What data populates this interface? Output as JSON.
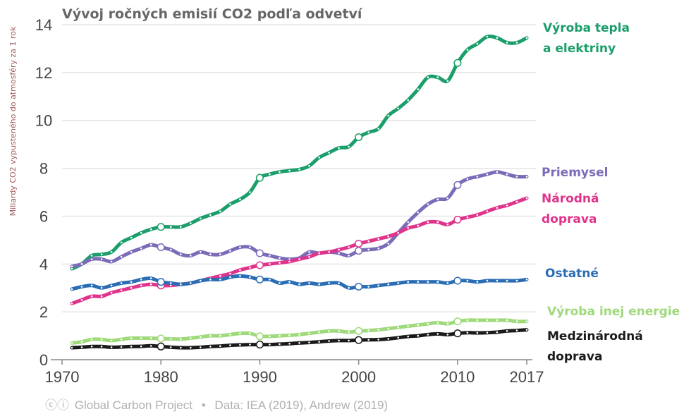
{
  "chart_data": {
    "type": "line",
    "title": "Vývoj ročných emisií CO2 podľa odvetví",
    "ylabel": "Miliardy CO2 vypusteného do atmosféry za 1 rok",
    "xlabel": "",
    "xlim": [
      1970,
      2017
    ],
    "ylim": [
      0,
      14
    ],
    "x_ticks": [
      1970,
      1980,
      1990,
      2000,
      2010,
      2017
    ],
    "y_ticks": [
      0,
      2,
      4,
      6,
      8,
      10,
      12,
      14
    ],
    "x": [
      1971,
      1972,
      1973,
      1974,
      1975,
      1976,
      1977,
      1978,
      1979,
      1980,
      1981,
      1982,
      1983,
      1984,
      1985,
      1986,
      1987,
      1988,
      1989,
      1990,
      1991,
      1992,
      1993,
      1994,
      1995,
      1996,
      1997,
      1998,
      1999,
      2000,
      2001,
      2002,
      2003,
      2004,
      2005,
      2006,
      2007,
      2008,
      2009,
      2010,
      2011,
      2012,
      2013,
      2014,
      2015,
      2016,
      2017
    ],
    "series": [
      {
        "name": "Výroba tepla a elektriny",
        "label_lines": [
          "Výroba tepla",
          "a elektriny"
        ],
        "color": "#1a9e6a",
        "values": [
          3.8,
          4.0,
          4.35,
          4.4,
          4.5,
          4.9,
          5.1,
          5.3,
          5.45,
          5.55,
          5.55,
          5.55,
          5.7,
          5.9,
          6.05,
          6.2,
          6.5,
          6.7,
          7.0,
          7.6,
          7.75,
          7.85,
          7.9,
          7.95,
          8.1,
          8.45,
          8.65,
          8.85,
          8.9,
          9.3,
          9.5,
          9.65,
          10.2,
          10.5,
          10.85,
          11.3,
          11.8,
          11.8,
          11.65,
          12.4,
          12.95,
          13.2,
          13.5,
          13.45,
          13.25,
          13.25,
          13.45
        ]
      },
      {
        "name": "Priemysel",
        "label_lines": [
          "Priemysel"
        ],
        "color": "#7b6bb8",
        "values": [
          3.9,
          4.0,
          4.2,
          4.2,
          4.1,
          4.3,
          4.5,
          4.65,
          4.8,
          4.7,
          4.6,
          4.4,
          4.35,
          4.5,
          4.4,
          4.4,
          4.55,
          4.7,
          4.7,
          4.45,
          4.35,
          4.25,
          4.2,
          4.25,
          4.5,
          4.45,
          4.5,
          4.45,
          4.35,
          4.55,
          4.6,
          4.65,
          4.85,
          5.3,
          5.75,
          6.15,
          6.5,
          6.7,
          6.75,
          7.3,
          7.55,
          7.65,
          7.75,
          7.85,
          7.75,
          7.65,
          7.65
        ]
      },
      {
        "name": "Národná doprava",
        "label_lines": [
          "Národná",
          "doprava"
        ],
        "color": "#e0338c",
        "values": [
          2.35,
          2.5,
          2.65,
          2.65,
          2.8,
          2.9,
          3.0,
          3.1,
          3.15,
          3.1,
          3.1,
          3.15,
          3.2,
          3.3,
          3.4,
          3.5,
          3.6,
          3.75,
          3.85,
          3.95,
          4.0,
          4.05,
          4.1,
          4.2,
          4.3,
          4.45,
          4.5,
          4.6,
          4.7,
          4.85,
          4.95,
          5.05,
          5.15,
          5.3,
          5.5,
          5.6,
          5.75,
          5.75,
          5.65,
          5.85,
          5.95,
          6.05,
          6.2,
          6.35,
          6.45,
          6.6,
          6.75
        ]
      },
      {
        "name": "Ostatné",
        "label_lines": [
          "Ostatné"
        ],
        "color": "#2a6db5",
        "values": [
          2.95,
          3.05,
          3.1,
          3.0,
          3.1,
          3.2,
          3.25,
          3.35,
          3.4,
          3.25,
          3.2,
          3.15,
          3.2,
          3.3,
          3.35,
          3.35,
          3.45,
          3.5,
          3.45,
          3.35,
          3.35,
          3.2,
          3.25,
          3.15,
          3.2,
          3.15,
          3.2,
          3.2,
          3.0,
          3.05,
          3.05,
          3.1,
          3.15,
          3.2,
          3.25,
          3.25,
          3.25,
          3.25,
          3.2,
          3.3,
          3.3,
          3.25,
          3.3,
          3.3,
          3.3,
          3.3,
          3.35
        ]
      },
      {
        "name": "Výroba inej energie",
        "label_lines": [
          "Výroba inej energie"
        ],
        "color": "#9ed97a",
        "values": [
          0.7,
          0.75,
          0.85,
          0.85,
          0.8,
          0.85,
          0.9,
          0.9,
          0.9,
          0.88,
          0.87,
          0.86,
          0.9,
          0.95,
          1.0,
          1.0,
          1.05,
          1.1,
          1.1,
          0.98,
          0.98,
          1.0,
          1.02,
          1.05,
          1.1,
          1.15,
          1.2,
          1.2,
          1.15,
          1.2,
          1.22,
          1.25,
          1.3,
          1.35,
          1.4,
          1.45,
          1.5,
          1.55,
          1.5,
          1.6,
          1.65,
          1.65,
          1.65,
          1.65,
          1.65,
          1.6,
          1.6
        ]
      },
      {
        "name": "Medzinárodná doprava",
        "label_lines": [
          "Medzinárodná",
          "doprava"
        ],
        "color": "#1a1a1a",
        "values": [
          0.5,
          0.52,
          0.55,
          0.55,
          0.52,
          0.53,
          0.55,
          0.56,
          0.58,
          0.55,
          0.52,
          0.5,
          0.5,
          0.52,
          0.55,
          0.57,
          0.6,
          0.62,
          0.63,
          0.63,
          0.63,
          0.65,
          0.67,
          0.7,
          0.72,
          0.75,
          0.78,
          0.8,
          0.8,
          0.82,
          0.83,
          0.84,
          0.87,
          0.92,
          0.97,
          1.0,
          1.05,
          1.08,
          1.05,
          1.1,
          1.13,
          1.12,
          1.13,
          1.15,
          1.2,
          1.22,
          1.25
        ]
      }
    ]
  },
  "footer": {
    "cc_icons": "ⓒⓘ",
    "source_org": "Global Carbon Project",
    "separator": "•",
    "source_data": "Data: IEA (2019), Andrew (2019)"
  }
}
